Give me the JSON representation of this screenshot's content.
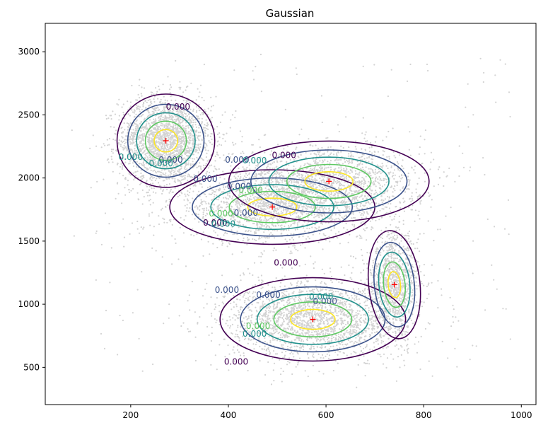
{
  "chart_data": {
    "type": "contour",
    "title": "Gaussian",
    "xlabel": "",
    "ylabel": "",
    "xlim": [
      25,
      1030
    ],
    "ylim": [
      205,
      3225
    ],
    "x_ticks": [
      200,
      400,
      600,
      800,
      1000
    ],
    "y_ticks": [
      500,
      1000,
      1500,
      2000,
      2500,
      3000
    ],
    "grid": false,
    "scatter_color": "#d3d3d3",
    "center_marker_color": "#ff0000",
    "contour_level_label": "0.000",
    "contour_level_colors": [
      "#440154",
      "#3b528b",
      "#21918c",
      "#5ec962",
      "#fde725"
    ],
    "components": [
      {
        "center": [
          272,
          2295
        ],
        "width": 200,
        "height": 740,
        "angle_deg": 0,
        "contour_labels_at": [
          [
            297,
            2562,
            0
          ],
          [
            282,
            2142,
            1
          ],
          [
            200,
            2162,
            2
          ],
          [
            262,
            2114,
            2
          ]
        ]
      },
      {
        "center": [
          490,
          1770
        ],
        "width": 420,
        "height": 590,
        "angle_deg": 0,
        "contour_labels_at": [
          [
            373,
            1643,
            0
          ],
          [
            353,
            1990,
            1
          ],
          [
            436,
            1720,
            1
          ],
          [
            390,
            1635,
            2
          ],
          [
            385,
            1715,
            3
          ]
        ]
      },
      {
        "center": [
          606,
          1973
        ],
        "width": 410,
        "height": 640,
        "angle_deg": 0,
        "contour_labels_at": [
          [
            514,
            2177,
            0
          ],
          [
            418,
            2140,
            1
          ],
          [
            422,
            1930,
            1
          ],
          [
            454,
            2135,
            2
          ],
          [
            446,
            1900,
            3
          ]
        ]
      },
      {
        "center": [
          573,
          880
        ],
        "width": 380,
        "height": 660,
        "angle_deg": 0,
        "contour_labels_at": [
          [
            416,
            540,
            0
          ],
          [
            397,
            1110,
            1
          ],
          [
            482,
            1070,
            1
          ],
          [
            454,
            763,
            2
          ],
          [
            461,
            823,
            3
          ]
        ]
      },
      {
        "center": [
          740,
          1155
        ],
        "width": 105,
        "height": 860,
        "angle_deg": -6,
        "contour_labels_at": [
          [
            518,
            1325,
            0
          ],
          [
            598,
            1020,
            1
          ],
          [
            590,
            1058,
            2
          ]
        ]
      }
    ]
  }
}
